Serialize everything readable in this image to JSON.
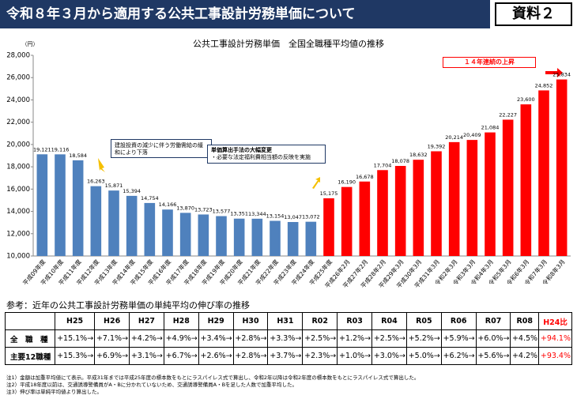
{
  "header": {
    "title": "令和８年３月から適用する公共工事設計労務単価について",
    "badge": "資料２"
  },
  "chart_data": {
    "type": "bar",
    "title": "公共工事設計労務単価　全国全職種平均値の推移",
    "y_unit": "（円）",
    "categories": [
      "平成09年度",
      "平成10年度",
      "平成11年度",
      "平成12年度",
      "平成13年度",
      "平成14年度",
      "平成15年度",
      "平成16年度",
      "平成17年度",
      "平成18年度",
      "平成19年度",
      "平成20年度",
      "平成21年度",
      "平成22年度",
      "平成23年度",
      "平成24年度",
      "平成25年度",
      "平成26年2月",
      "平成27年2月",
      "平成28年2月",
      "平成29年3月",
      "平成30年3月",
      "平成31年3月",
      "令和2年3月",
      "令和3年3月",
      "令和4年3月",
      "令和5年3月",
      "令和6年3月",
      "令和7年3月",
      "令和8年3月"
    ],
    "values": [
      19121,
      19116,
      18584,
      16263,
      15871,
      15394,
      14754,
      14166,
      13870,
      13723,
      13577,
      13351,
      13344,
      13154,
      13047,
      13072,
      15175,
      16190,
      16678,
      17704,
      18078,
      18632,
      19392,
      20214,
      20409,
      21084,
      22227,
      23600,
      24852,
      25834
    ],
    "value_labels": [
      "19,121",
      "19,116",
      "18,584",
      "16,263",
      "15,871",
      "15,394",
      "14,754",
      "14,166",
      "13,870",
      "13,723",
      "13,577",
      "13,351",
      "13,344",
      "13,154",
      "13,047",
      "13,072",
      "15,175",
      "16,190",
      "16,678",
      "17,704",
      "18,078",
      "18,632",
      "19,392",
      "20,214",
      "20,409",
      "21,084",
      "22,227",
      "23,600",
      "24,852",
      "25,834"
    ],
    "colors": [
      "#4f81bd",
      "#4f81bd",
      "#4f81bd",
      "#4f81bd",
      "#4f81bd",
      "#4f81bd",
      "#4f81bd",
      "#4f81bd",
      "#4f81bd",
      "#4f81bd",
      "#4f81bd",
      "#4f81bd",
      "#4f81bd",
      "#4f81bd",
      "#4f81bd",
      "#4f81bd",
      "#ff0000",
      "#ff0000",
      "#ff0000",
      "#ff0000",
      "#ff0000",
      "#ff0000",
      "#ff0000",
      "#ff0000",
      "#ff0000",
      "#ff0000",
      "#ff0000",
      "#ff0000",
      "#ff0000",
      "#ff0000"
    ],
    "ylim": [
      10000,
      28000
    ],
    "yticks": [
      {
        "value": 10000,
        "label": "10,000"
      },
      {
        "value": 12000,
        "label": "12,000"
      },
      {
        "value": 14000,
        "label": "14,000"
      },
      {
        "value": 16000,
        "label": "16,000"
      },
      {
        "value": 18000,
        "label": "18,000"
      },
      {
        "value": 20000,
        "label": "20,000"
      },
      {
        "value": 22000,
        "label": "22,000"
      },
      {
        "value": 24000,
        "label": "24,000"
      },
      {
        "value": 26000,
        "label": "26,000"
      },
      {
        "value": 28000,
        "label": "28,000"
      }
    ],
    "grid": false,
    "annotations": [
      "建設投資の減少に伴う労働需給の緩和により下落",
      "単価算出手法の大幅変更",
      "・必要な法定福利費相当額の反映を実施",
      "１４年連続の上昇"
    ]
  },
  "table": {
    "title": "参考：近年の公共工事設計労務単価の単純平均の伸び率の推移",
    "columns": [
      "H25",
      "H26",
      "H27",
      "H28",
      "H29",
      "H30",
      "H31",
      "R02",
      "R03",
      "R04",
      "R05",
      "R06",
      "R07",
      "R08",
      "H24比"
    ],
    "rows": [
      {
        "label": "全　職　種",
        "cells": [
          "+15.1%→",
          "+7.1%→",
          "+4.2%→",
          "+4.9%→",
          "+3.4%→",
          "+2.8%→",
          "+3.3%→",
          "+2.5%→",
          "+1.2%→",
          "+2.5%→",
          "+5.2%→",
          "+5.9%→",
          "+6.0%→",
          "+4.5%",
          "+94.1%"
        ]
      },
      {
        "label": "主要12職種",
        "cells": [
          "+15.3%→",
          "+6.9%→",
          "+3.1%→",
          "+6.7%→",
          "+2.6%→",
          "+2.8%→",
          "+3.7%→",
          "+2.3%→",
          "+1.0%→",
          "+3.0%→",
          "+5.0%→",
          "+6.2%→",
          "+5.6%→",
          "+4.2%",
          "+93.4%"
        ]
      }
    ]
  },
  "notes": [
    "注1）金額は加重平均値にて表示。平成31年までは平成25年度の標本数をもとにラスパイレス式で算出し、令和2年以降は令和2年度の標本数をもとにラスパイレス式で算出した。",
    "注2）平成18年度以前は、交通誘導警備員がA・Bに分かれていないため、交通誘導警備員A・Bを足した人数で加重平均した。",
    "注3）伸び率は単純平均値より算出した。"
  ]
}
